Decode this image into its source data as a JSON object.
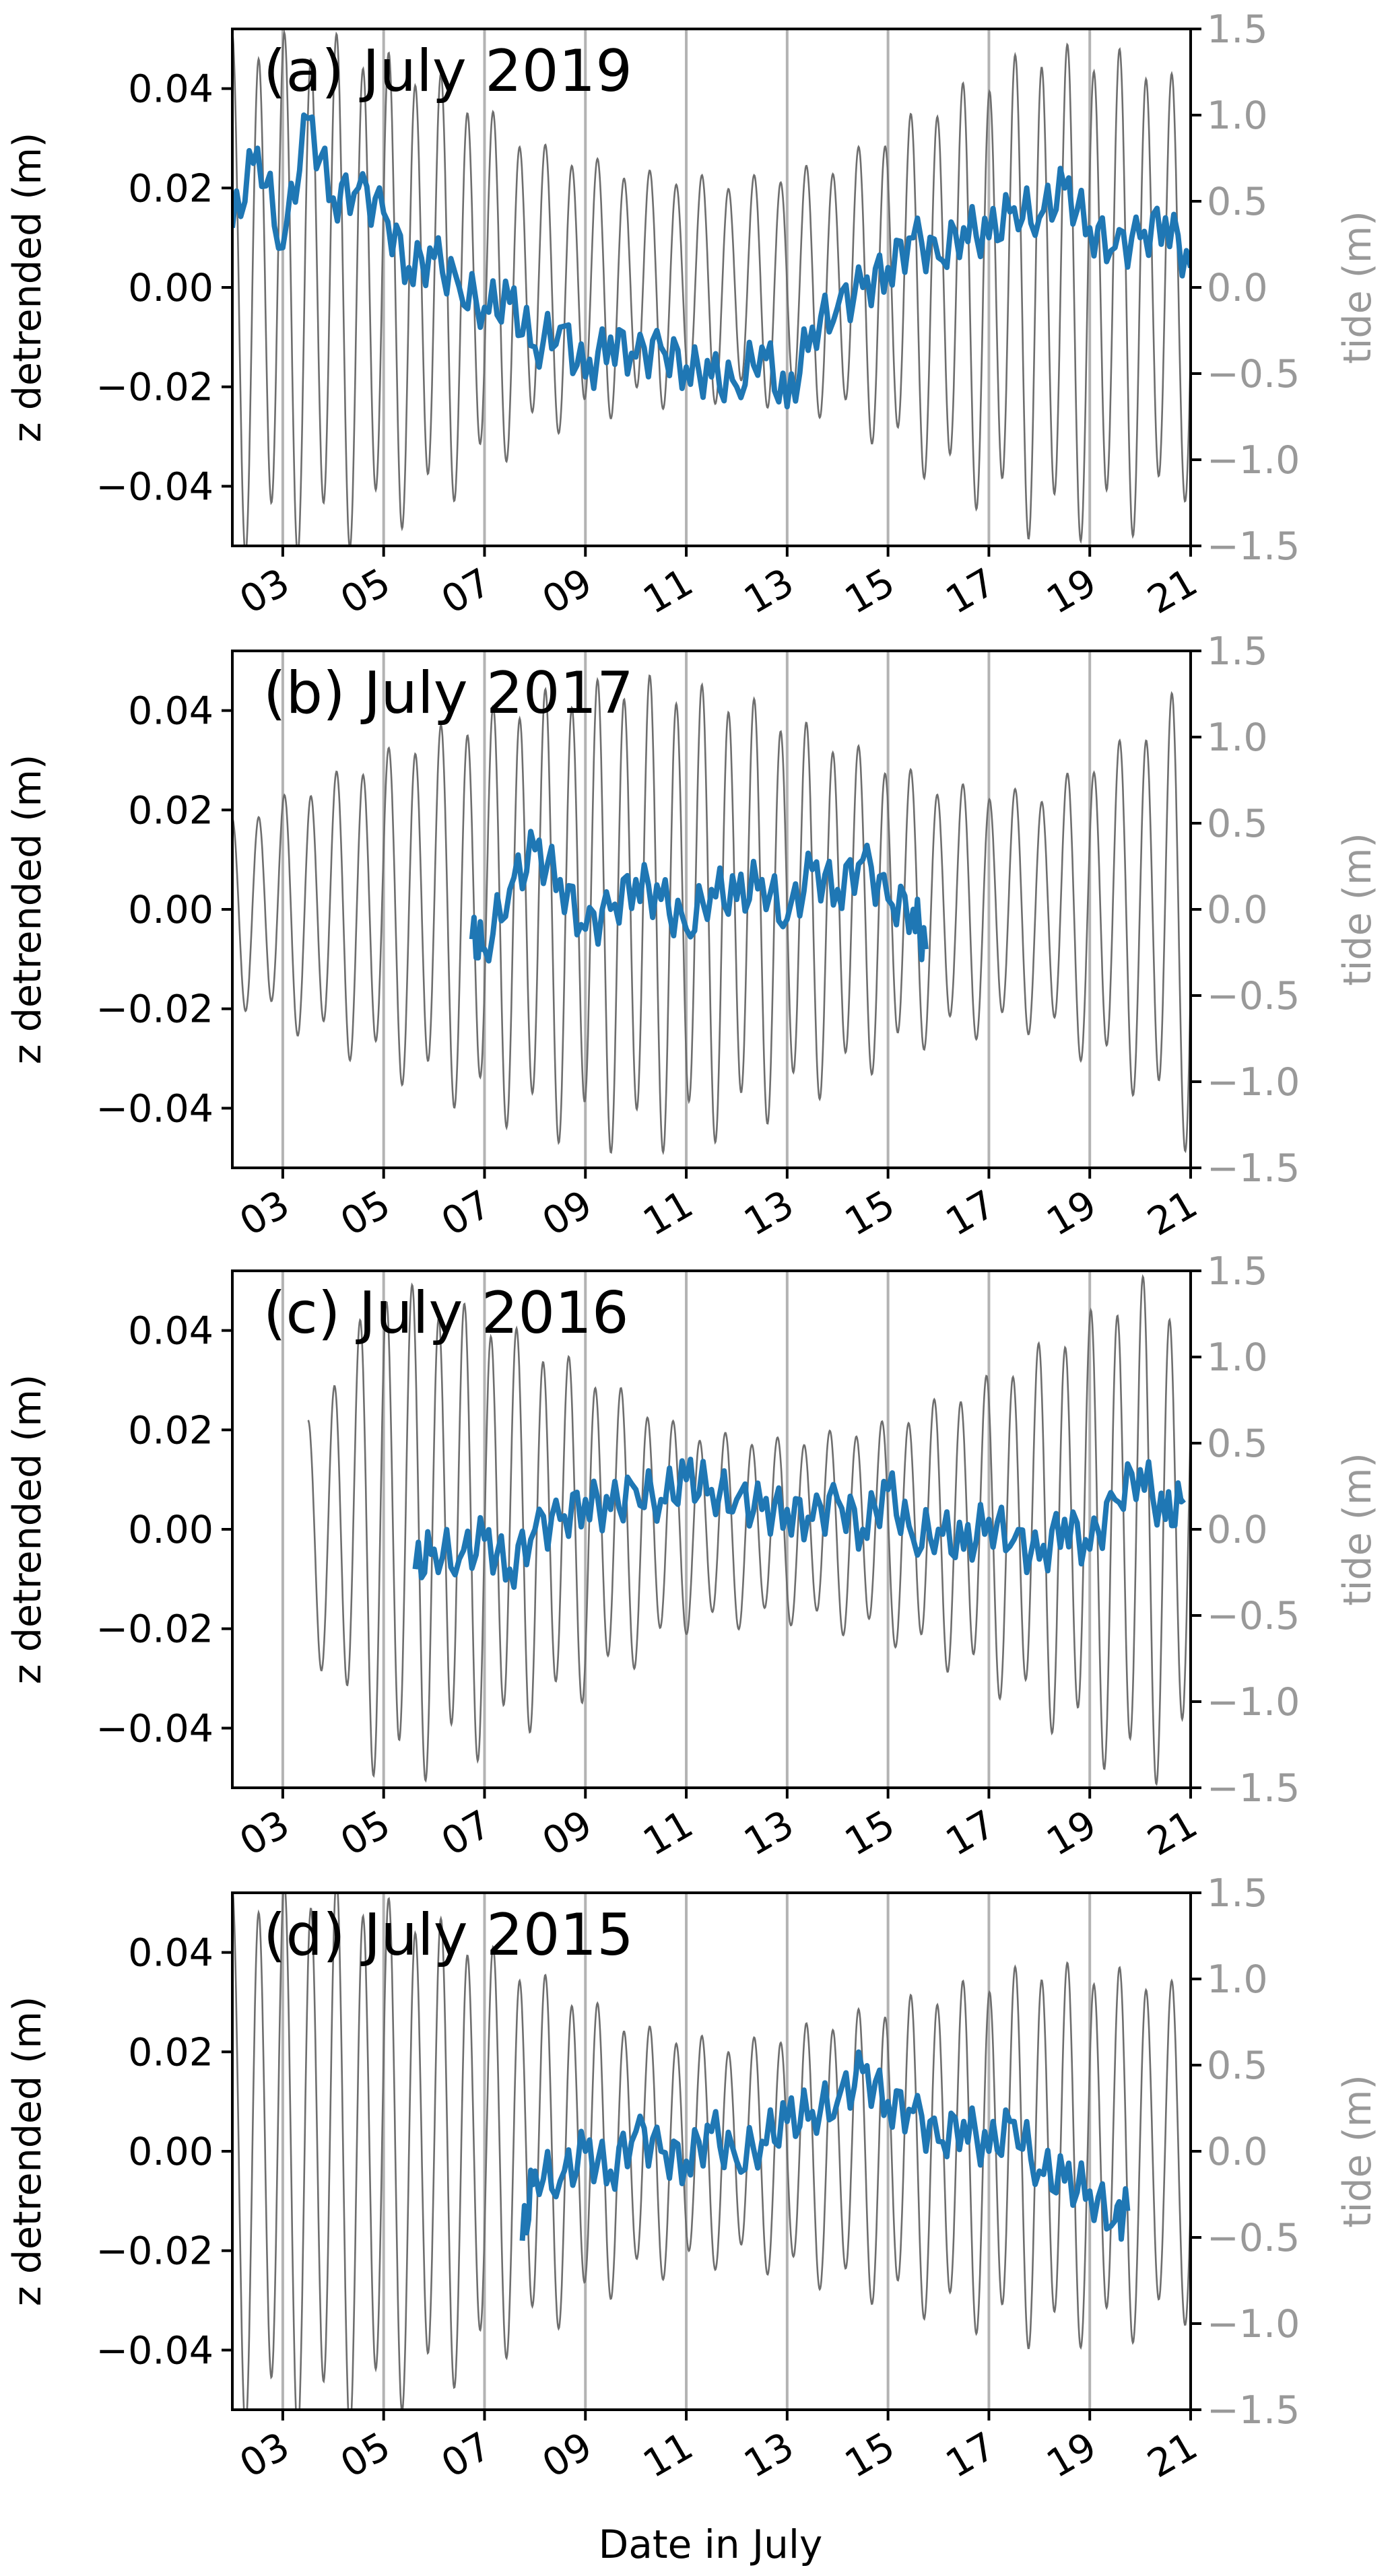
{
  "figure": {
    "xlabel": "Date in July",
    "colors": {
      "z_series": "#1f77b4",
      "tide_series": "#6e6e6e",
      "tide_axis": "#999999",
      "gridline": "#b3b3b3",
      "axis": "#000000"
    }
  },
  "chart_data": [
    {
      "type": "line",
      "title": "(a) July 2019",
      "ylabel": "z detrended (m)",
      "y2label": "tide (m)",
      "xlim": [
        "2019-07-02",
        "2019-07-21"
      ],
      "ylim": [
        -0.052,
        0.052
      ],
      "y2lim": [
        -1.5,
        1.5
      ],
      "xticks": [
        "03",
        "05",
        "07",
        "09",
        "11",
        "13",
        "15",
        "17",
        "19",
        "21"
      ],
      "yticks": [
        "0.04",
        "0.02",
        "0.00",
        "−0.02",
        "−0.04"
      ],
      "y2ticks": [
        "1.5",
        "1.0",
        "0.5",
        "0.0",
        "−0.5",
        "−1.0",
        "−1.5"
      ],
      "grid": "vertical lines at odd days",
      "series": [
        {
          "axis": "left",
          "x": [
            "2019-07-02",
            "2019-07-02 12:00",
            "2019-07-03",
            "2019-07-03 12:00",
            "2019-07-04",
            "2019-07-04 12:00",
            "2019-07-05",
            "2019-07-05 12:00",
            "2019-07-06",
            "2019-07-06 12:00",
            "2019-07-07",
            "2019-07-07 12:00",
            "2019-07-08",
            "2019-07-08 12:00",
            "2019-07-09",
            "2019-07-09 12:00",
            "2019-07-10",
            "2019-07-10 12:00",
            "2019-07-11",
            "2019-07-11 12:00",
            "2019-07-12",
            "2019-07-12 12:00",
            "2019-07-13",
            "2019-07-13 12:00",
            "2019-07-14",
            "2019-07-14 12:00",
            "2019-07-15",
            "2019-07-15 12:00",
            "2019-07-16",
            "2019-07-16 12:00",
            "2019-07-17",
            "2019-07-17 12:00",
            "2019-07-18",
            "2019-07-18 12:00",
            "2019-07-19",
            "2019-07-19 12:00",
            "2019-07-20",
            "2019-07-20 12:00",
            "2019-07-21"
          ],
          "values": [
            0.012,
            0.028,
            0.008,
            0.034,
            0.018,
            0.02,
            0.015,
            0.004,
            0.006,
            0.0,
            -0.004,
            -0.003,
            -0.012,
            -0.008,
            -0.018,
            -0.01,
            -0.014,
            -0.012,
            -0.016,
            -0.018,
            -0.02,
            -0.012,
            -0.024,
            -0.008,
            -0.004,
            0.0,
            0.004,
            0.01,
            0.006,
            0.012,
            0.01,
            0.016,
            0.014,
            0.02,
            0.012,
            0.008,
            0.01,
            0.014,
            0.004
          ]
        },
        {
          "axis": "right",
          "tidal_range": [
            {
              "x": "2019-07-02",
              "range": 1.4
            },
            {
              "x": "2019-07-04",
              "range": 1.4
            },
            {
              "x": "2019-07-06",
              "range": 1.2
            },
            {
              "x": "2019-07-08",
              "range": 0.8
            },
            {
              "x": "2019-07-10",
              "range": 0.65
            },
            {
              "x": "2019-07-12",
              "range": 0.6
            },
            {
              "x": "2019-07-14",
              "range": 0.7
            },
            {
              "x": "2019-07-16",
              "range": 1.05
            },
            {
              "x": "2019-07-18",
              "range": 1.35
            },
            {
              "x": "2019-07-20",
              "range": 1.3
            },
            {
              "x": "2019-07-21",
              "range": 1.1
            }
          ]
        }
      ]
    },
    {
      "type": "line",
      "title": "(b) July 2017",
      "ylabel": "z detrended (m)",
      "y2label": "tide (m)",
      "xlim": [
        "2017-07-02",
        "2017-07-21"
      ],
      "ylim": [
        -0.052,
        0.052
      ],
      "y2lim": [
        -1.5,
        1.5
      ],
      "xticks": [
        "03",
        "05",
        "07",
        "09",
        "11",
        "13",
        "15",
        "17",
        "19",
        "21"
      ],
      "yticks": [
        "0.04",
        "0.02",
        "0.00",
        "−0.02",
        "−0.04"
      ],
      "y2ticks": [
        "1.5",
        "1.0",
        "0.5",
        "0.0",
        "−0.5",
        "−1.0",
        "−1.5"
      ],
      "grid": "vertical lines at odd days",
      "series": [
        {
          "axis": "left",
          "x": [
            "2017-07-06 18:00",
            "2017-07-07",
            "2017-07-07 12:00",
            "2017-07-08",
            "2017-07-08 12:00",
            "2017-07-09",
            "2017-07-09 12:00",
            "2017-07-10",
            "2017-07-10 12:00",
            "2017-07-11",
            "2017-07-11 12:00",
            "2017-07-12",
            "2017-07-12 12:00",
            "2017-07-13",
            "2017-07-13 12:00",
            "2017-07-14",
            "2017-07-14 12:00",
            "2017-07-15",
            "2017-07-15 12:00",
            "2017-07-15 18:00"
          ],
          "values": [
            -0.006,
            -0.008,
            0.004,
            0.012,
            0.006,
            -0.004,
            0.0,
            0.006,
            0.002,
            -0.004,
            0.004,
            0.002,
            0.006,
            -0.002,
            0.008,
            0.004,
            0.01,
            0.002,
            0.0,
            -0.008
          ]
        },
        {
          "axis": "right",
          "tidal_range": [
            {
              "x": "2017-07-02",
              "range": 0.5
            },
            {
              "x": "2017-07-04",
              "range": 0.75
            },
            {
              "x": "2017-07-06",
              "range": 1.0
            },
            {
              "x": "2017-07-08",
              "range": 1.2
            },
            {
              "x": "2017-07-10",
              "range": 1.3
            },
            {
              "x": "2017-07-12",
              "range": 1.2
            },
            {
              "x": "2017-07-14",
              "range": 0.95
            },
            {
              "x": "2017-07-16",
              "range": 0.7
            },
            {
              "x": "2017-07-18",
              "range": 0.65
            },
            {
              "x": "2017-07-20",
              "range": 1.0
            },
            {
              "x": "2017-07-21",
              "range": 1.3
            }
          ]
        }
      ]
    },
    {
      "type": "line",
      "title": "(c) July 2016",
      "ylabel": "z detrended (m)",
      "y2label": "tide (m)",
      "xlim": [
        "2016-07-02",
        "2016-07-21"
      ],
      "ylim": [
        -0.052,
        0.052
      ],
      "y2lim": [
        -1.5,
        1.5
      ],
      "xticks": [
        "03",
        "05",
        "07",
        "09",
        "11",
        "13",
        "15",
        "17",
        "19",
        "21"
      ],
      "yticks": [
        "0.04",
        "0.02",
        "0.00",
        "−0.02",
        "−0.04"
      ],
      "y2ticks": [
        "1.5",
        "1.0",
        "0.5",
        "0.0",
        "−0.5",
        "−1.0",
        "−1.5"
      ],
      "grid": "vertical lines at odd days",
      "series": [
        {
          "axis": "left",
          "x": [
            "2016-07-05 15:00",
            "2016-07-06",
            "2016-07-06 12:00",
            "2016-07-07",
            "2016-07-07 12:00",
            "2016-07-08",
            "2016-07-08 12:00",
            "2016-07-09",
            "2016-07-09 12:00",
            "2016-07-10",
            "2016-07-10 12:00",
            "2016-07-11",
            "2016-07-11 12:00",
            "2016-07-12",
            "2016-07-12 12:00",
            "2016-07-13",
            "2016-07-13 12:00",
            "2016-07-14",
            "2016-07-14 12:00",
            "2016-07-15",
            "2016-07-15 12:00",
            "2016-07-16",
            "2016-07-16 12:00",
            "2016-07-17",
            "2016-07-17 12:00",
            "2016-07-18",
            "2016-07-18 12:00",
            "2016-07-19",
            "2016-07-19 12:00",
            "2016-07-20",
            "2016-07-20 12:00",
            "2016-07-20 21:00"
          ],
          "values": [
            -0.008,
            -0.004,
            -0.006,
            -0.002,
            -0.008,
            0.0,
            0.002,
            0.006,
            0.004,
            0.008,
            0.006,
            0.01,
            0.008,
            0.006,
            0.004,
            0.004,
            0.002,
            0.006,
            0.0,
            0.008,
            -0.002,
            0.0,
            -0.004,
            0.002,
            -0.002,
            -0.006,
            0.002,
            -0.004,
            0.006,
            0.012,
            0.002,
            0.006
          ]
        },
        {
          "axis": "right",
          "tidal_range": [
            {
              "x": "2016-07-03 12:00",
              "range": 0.6
            },
            {
              "x": "2016-07-05",
              "range": 1.4
            },
            {
              "x": "2016-07-07",
              "range": 1.2
            },
            {
              "x": "2016-07-09",
              "range": 0.9
            },
            {
              "x": "2016-07-11",
              "range": 0.55
            },
            {
              "x": "2016-07-13",
              "range": 0.5
            },
            {
              "x": "2016-07-15",
              "range": 0.6
            },
            {
              "x": "2016-07-17",
              "range": 0.85
            },
            {
              "x": "2016-07-19",
              "range": 1.2
            },
            {
              "x": "2016-07-20",
              "range": 1.4
            },
            {
              "x": "2016-07-21",
              "range": 1.2
            }
          ]
        }
      ]
    },
    {
      "type": "line",
      "title": "(d) July 2015",
      "ylabel": "z detrended (m)",
      "y2label": "tide (m)",
      "xlim": [
        "2015-07-02",
        "2015-07-21"
      ],
      "ylim": [
        -0.052,
        0.052
      ],
      "y2lim": [
        -1.5,
        1.5
      ],
      "xticks": [
        "03",
        "05",
        "07",
        "09",
        "11",
        "13",
        "15",
        "17",
        "19",
        "21"
      ],
      "yticks": [
        "0.04",
        "0.02",
        "0.00",
        "−0.02",
        "−0.04"
      ],
      "y2ticks": [
        "1.5",
        "1.0",
        "0.5",
        "0.0",
        "−0.5",
        "−1.0",
        "−1.5"
      ],
      "grid": "vertical lines at odd days",
      "series": [
        {
          "axis": "left",
          "x": [
            "2015-07-07 18:00",
            "2015-07-08",
            "2015-07-08 12:00",
            "2015-07-09",
            "2015-07-09 12:00",
            "2015-07-10",
            "2015-07-10 12:00",
            "2015-07-11",
            "2015-07-11 12:00",
            "2015-07-12",
            "2015-07-12 12:00",
            "2015-07-13",
            "2015-07-13 12:00",
            "2015-07-14",
            "2015-07-14 12:00",
            "2015-07-15",
            "2015-07-15 12:00",
            "2015-07-16",
            "2015-07-16 12:00",
            "2015-07-17",
            "2015-07-17 12:00",
            "2015-07-18",
            "2015-07-18 12:00",
            "2015-07-19",
            "2015-07-19 12:00",
            "2015-07-19 18:00"
          ],
          "values": [
            -0.018,
            -0.004,
            -0.006,
            0.0,
            -0.004,
            0.004,
            0.0,
            -0.002,
            0.004,
            -0.002,
            0.002,
            0.006,
            0.008,
            0.01,
            0.016,
            0.01,
            0.008,
            0.002,
            0.006,
            0.0,
            0.006,
            -0.004,
            -0.006,
            -0.008,
            -0.014,
            -0.012
          ]
        },
        {
          "axis": "right",
          "tidal_range": [
            {
              "x": "2015-07-02",
              "range": 1.45
            },
            {
              "x": "2015-07-04",
              "range": 1.5
            },
            {
              "x": "2015-07-06",
              "range": 1.3
            },
            {
              "x": "2015-07-08",
              "range": 1.0
            },
            {
              "x": "2015-07-10",
              "range": 0.7
            },
            {
              "x": "2015-07-12",
              "range": 0.6
            },
            {
              "x": "2015-07-14",
              "range": 0.75
            },
            {
              "x": "2015-07-16",
              "range": 0.9
            },
            {
              "x": "2015-07-18",
              "range": 1.05
            },
            {
              "x": "2015-07-20",
              "range": 1.0
            },
            {
              "x": "2015-07-21",
              "range": 0.9
            }
          ]
        }
      ]
    }
  ]
}
